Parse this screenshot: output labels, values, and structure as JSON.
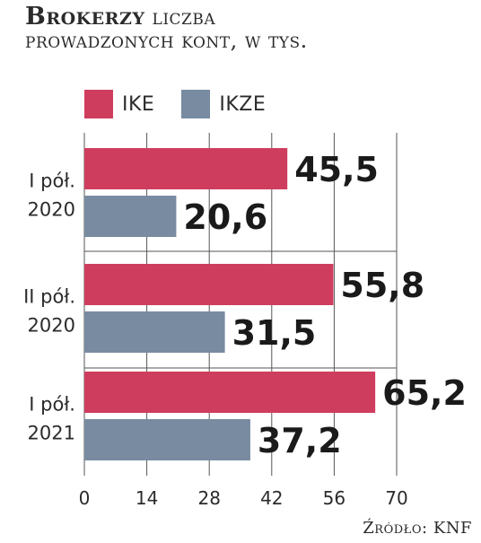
{
  "header": {
    "title_bold": "Brokerzy",
    "title_rest": "liczba",
    "title_line2": "prowadzonych kont, w tys."
  },
  "legend": [
    {
      "label": "IKE",
      "color": "#cf3d5e"
    },
    {
      "label": "IKZE",
      "color": "#788ba0"
    }
  ],
  "source": "Źródło: KNF",
  "chart_data": {
    "type": "bar",
    "orientation": "horizontal",
    "title": "Brokerzy liczba prowadzonych kont, w tys.",
    "categories": [
      [
        "I pół.",
        "2020"
      ],
      [
        "II pół.",
        "2020"
      ],
      [
        "I pół.",
        "2021"
      ]
    ],
    "series": [
      {
        "name": "IKE",
        "values": [
          45.5,
          55.8,
          65.2
        ],
        "labels": [
          "45,5",
          "55,8",
          "65,2"
        ],
        "color": "#cf3d5e"
      },
      {
        "name": "IKZE",
        "values": [
          20.6,
          31.5,
          37.2
        ],
        "labels": [
          "20,6",
          "31,5",
          "37,2"
        ],
        "color": "#788ba0"
      }
    ],
    "xlim": [
      0,
      70
    ],
    "xticks": [
      "0",
      "14",
      "28",
      "42",
      "56",
      "70"
    ],
    "grid": true,
    "legend_position": "top-left"
  }
}
